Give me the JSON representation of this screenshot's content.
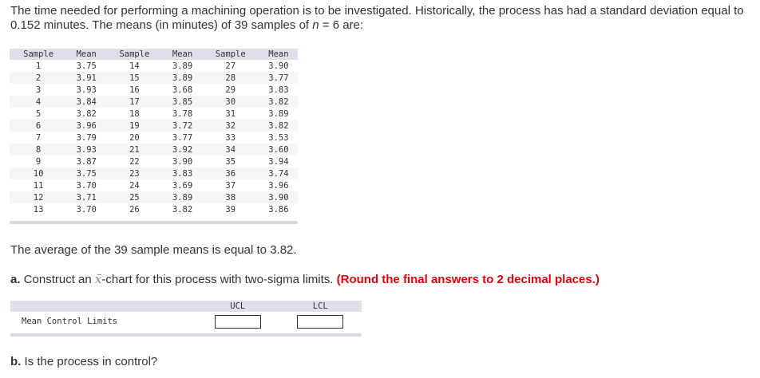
{
  "intro": {
    "text1": "The time needed for performing a machining operation is to be investigated. Historically, the process has had a standard deviation equal to 0.152 minutes. The means (in minutes) of 39 samples of ",
    "n_var": "n",
    "text2": " = 6 are:"
  },
  "table": {
    "headers": [
      "Sample",
      "Mean",
      "Sample",
      "Mean",
      "Sample",
      "Mean"
    ],
    "rows": [
      [
        "1",
        "3.75",
        "14",
        "3.89",
        "27",
        "3.90"
      ],
      [
        "2",
        "3.91",
        "15",
        "3.89",
        "28",
        "3.77"
      ],
      [
        "3",
        "3.93",
        "16",
        "3.68",
        "29",
        "3.83"
      ],
      [
        "4",
        "3.84",
        "17",
        "3.85",
        "30",
        "3.82"
      ],
      [
        "5",
        "3.82",
        "18",
        "3.78",
        "31",
        "3.89"
      ],
      [
        "6",
        "3.96",
        "19",
        "3.72",
        "32",
        "3.82"
      ],
      [
        "7",
        "3.79",
        "20",
        "3.77",
        "33",
        "3.53"
      ],
      [
        "8",
        "3.93",
        "21",
        "3.92",
        "34",
        "3.60"
      ],
      [
        "9",
        "3.87",
        "22",
        "3.90",
        "35",
        "3.94"
      ],
      [
        "10",
        "3.75",
        "23",
        "3.83",
        "36",
        "3.74"
      ],
      [
        "11",
        "3.70",
        "24",
        "3.69",
        "37",
        "3.96"
      ],
      [
        "12",
        "3.71",
        "25",
        "3.89",
        "38",
        "3.90"
      ],
      [
        "13",
        "3.70",
        "26",
        "3.82",
        "39",
        "3.86"
      ]
    ]
  },
  "average_text": "The average of the 39 sample means is equal to 3.82.",
  "part_a": {
    "label": "a.",
    "text1": " Construct an ",
    "xbar": "x̄",
    "text2": "-chart for this process with two-sigma limits. ",
    "note": "(Round the final answers to 2 decimal places.)"
  },
  "limits": {
    "headers": [
      "",
      "UCL",
      "LCL"
    ],
    "row_label": "Mean Control Limits",
    "ucl_value": "",
    "lcl_value": ""
  },
  "part_b": {
    "label": "b.",
    "text": " Is the process in control?"
  }
}
